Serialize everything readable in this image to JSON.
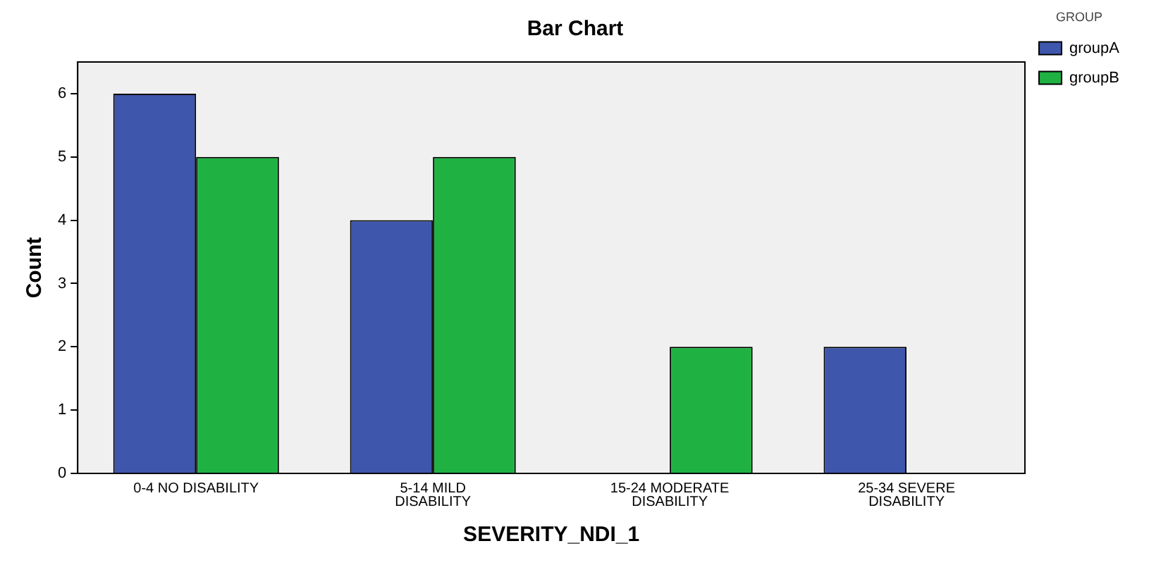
{
  "chart_data": {
    "type": "bar",
    "title": "Bar Chart",
    "xlabel": "SEVERITY_NDI_1",
    "ylabel": "Count",
    "legend_title": "GROUP",
    "categories": [
      "0-4 NO DISABILITY",
      "5-14 MILD DISABILITY",
      "15-24 MODERATE DISABILITY",
      "25-34 SEVERE DISABILITY"
    ],
    "series": [
      {
        "name": "groupA",
        "color": "#3e56ab",
        "values": [
          6,
          4,
          0,
          2
        ]
      },
      {
        "name": "groupB",
        "color": "#1fb243",
        "values": [
          5,
          5,
          2,
          0
        ]
      }
    ],
    "ylim": [
      0,
      6.5
    ],
    "yticks": [
      0,
      1,
      2,
      3,
      4,
      5,
      6
    ],
    "grid": false,
    "legend": "top right"
  }
}
